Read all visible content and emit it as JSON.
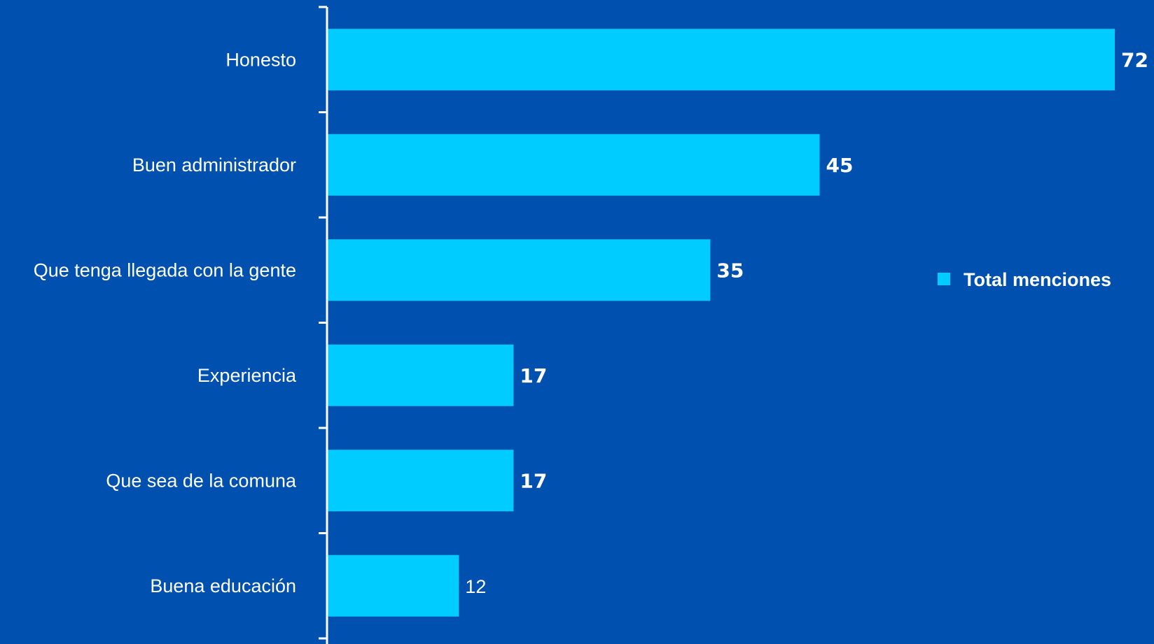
{
  "chart_data": {
    "type": "bar",
    "orientation": "horizontal",
    "categories": [
      "Honesto",
      "Buen administrador",
      "Que tenga llegada con la gente",
      "Experiencia",
      "Que sea de la comuna",
      "Buena educación"
    ],
    "series": [
      {
        "name": "Total menciones",
        "values": [
          72,
          45,
          35,
          17,
          17,
          12
        ],
        "color": "#00CCFF"
      }
    ],
    "data_labels": [
      "72",
      "45",
      "35",
      "17",
      "17",
      "12"
    ],
    "data_label_bold": [
      true,
      true,
      true,
      true,
      true,
      false
    ],
    "xlim": [
      0,
      72
    ],
    "grid": false,
    "legend_position": "right",
    "title": "",
    "xlabel": "",
    "ylabel": ""
  },
  "colors": {
    "background": "#0050B0",
    "bar": "#00CCFF",
    "text": "#FFFFFF",
    "axis": "#FFFFFF"
  }
}
